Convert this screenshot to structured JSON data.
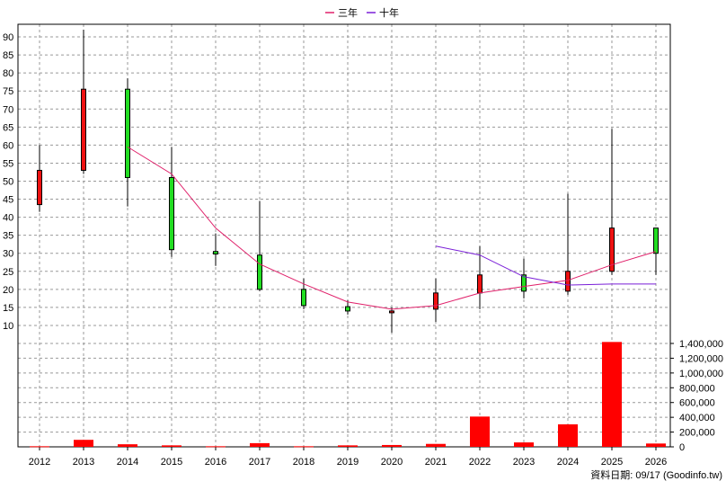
{
  "chart_data": {
    "type": "candlestick",
    "legend": [
      {
        "name": "三年",
        "color": "#e0206a"
      },
      {
        "name": "十年",
        "color": "#7a1fd8"
      }
    ],
    "legend_position": "top-center",
    "grid": true,
    "x_categories": [
      "2012",
      "2013",
      "2014",
      "2015",
      "2016",
      "2017",
      "2018",
      "2019",
      "2020",
      "2021",
      "2022",
      "2023",
      "2024",
      "2025",
      "2026"
    ],
    "price_axis": {
      "ticks": [
        10,
        15,
        20,
        25,
        30,
        35,
        40,
        45,
        50,
        55,
        60,
        65,
        70,
        75,
        80,
        85,
        90
      ],
      "range": [
        5.5,
        93.5
      ]
    },
    "candles": [
      {
        "x": "2012",
        "open": 43.5,
        "close": 53,
        "high": 60,
        "low": 41.5
      },
      {
        "x": "2013",
        "open": 53,
        "close": 75.5,
        "high": 92,
        "low": 52
      },
      {
        "x": "2014",
        "open": 75.5,
        "close": 51,
        "high": 78.5,
        "low": 43
      },
      {
        "x": "2015",
        "open": 51,
        "close": 31,
        "high": 59.5,
        "low": 29
      },
      {
        "x": "2016",
        "open": 30.5,
        "close": 29.8,
        "high": 35.5,
        "low": 26.5
      },
      {
        "x": "2017",
        "open": 29.5,
        "close": 20,
        "high": 44.5,
        "low": 19.5
      },
      {
        "x": "2018",
        "open": 20,
        "close": 15.5,
        "high": 23,
        "low": 14.5
      },
      {
        "x": "2019",
        "open": 15.2,
        "close": 14,
        "high": 17,
        "low": 13
      },
      {
        "x": "2020",
        "open": 14,
        "close": 14,
        "high": 15,
        "low": 8
      },
      {
        "x": "2021",
        "open": 14.5,
        "close": 19,
        "high": 23,
        "low": 11
      },
      {
        "x": "2022",
        "open": 19,
        "close": 24,
        "high": 32,
        "low": 14.5
      },
      {
        "x": "2023",
        "open": 24,
        "close": 19.5,
        "high": 28.5,
        "low": 17.5
      },
      {
        "x": "2024",
        "open": 19.5,
        "close": 25,
        "high": 46.5,
        "low": 18.5
      },
      {
        "x": "2025",
        "open": 25,
        "close": 37,
        "high": 64.5,
        "low": 24
      },
      {
        "x": "2026",
        "open": 37,
        "close": 30,
        "high": 37,
        "low": 24
      }
    ],
    "series": [
      {
        "name": "三年",
        "points": [
          [
            "2014",
            59.5
          ],
          [
            "2015",
            52
          ],
          [
            "2016",
            37
          ],
          [
            "2017",
            27
          ],
          [
            "2018",
            21.5
          ],
          [
            "2019",
            16.5
          ],
          [
            "2020",
            14.5
          ],
          [
            "2021",
            15.5
          ],
          [
            "2022",
            19
          ],
          [
            "2023",
            20.8
          ],
          [
            "2024",
            22.5
          ],
          [
            "2025",
            26.8
          ],
          [
            "2026",
            30.5
          ]
        ]
      },
      {
        "name": "十年",
        "points": [
          [
            "2021",
            32
          ],
          [
            "2022",
            29.5
          ],
          [
            "2023",
            23.5
          ],
          [
            "2024",
            21.2
          ],
          [
            "2025",
            21.5
          ],
          [
            "2026",
            21.5
          ]
        ]
      }
    ],
    "volume_axis": {
      "ticks": [
        "0",
        "200,000",
        "400,000",
        "600,000",
        "800,000",
        "1,000,000",
        "1,200,000",
        "1,400,000"
      ],
      "range": [
        0,
        1400000
      ]
    },
    "volume": [
      {
        "x": "2012",
        "value": 8000
      },
      {
        "x": "2013",
        "value": 95000
      },
      {
        "x": "2014",
        "value": 35000
      },
      {
        "x": "2015",
        "value": 20000
      },
      {
        "x": "2016",
        "value": 8000
      },
      {
        "x": "2017",
        "value": 50000
      },
      {
        "x": "2018",
        "value": 8000
      },
      {
        "x": "2019",
        "value": 20000
      },
      {
        "x": "2020",
        "value": 25000
      },
      {
        "x": "2021",
        "value": 40000
      },
      {
        "x": "2022",
        "value": 410000
      },
      {
        "x": "2023",
        "value": 60000
      },
      {
        "x": "2024",
        "value": 305000
      },
      {
        "x": "2025",
        "value": 1420000
      },
      {
        "x": "2026",
        "value": 45000
      }
    ],
    "colors": {
      "up": "#ee1111",
      "down": "#22dd22",
      "volume": "#ff0000",
      "grid": "#999999"
    },
    "footer": "資料日期: 09/17  (Goodinfo.tw)"
  }
}
